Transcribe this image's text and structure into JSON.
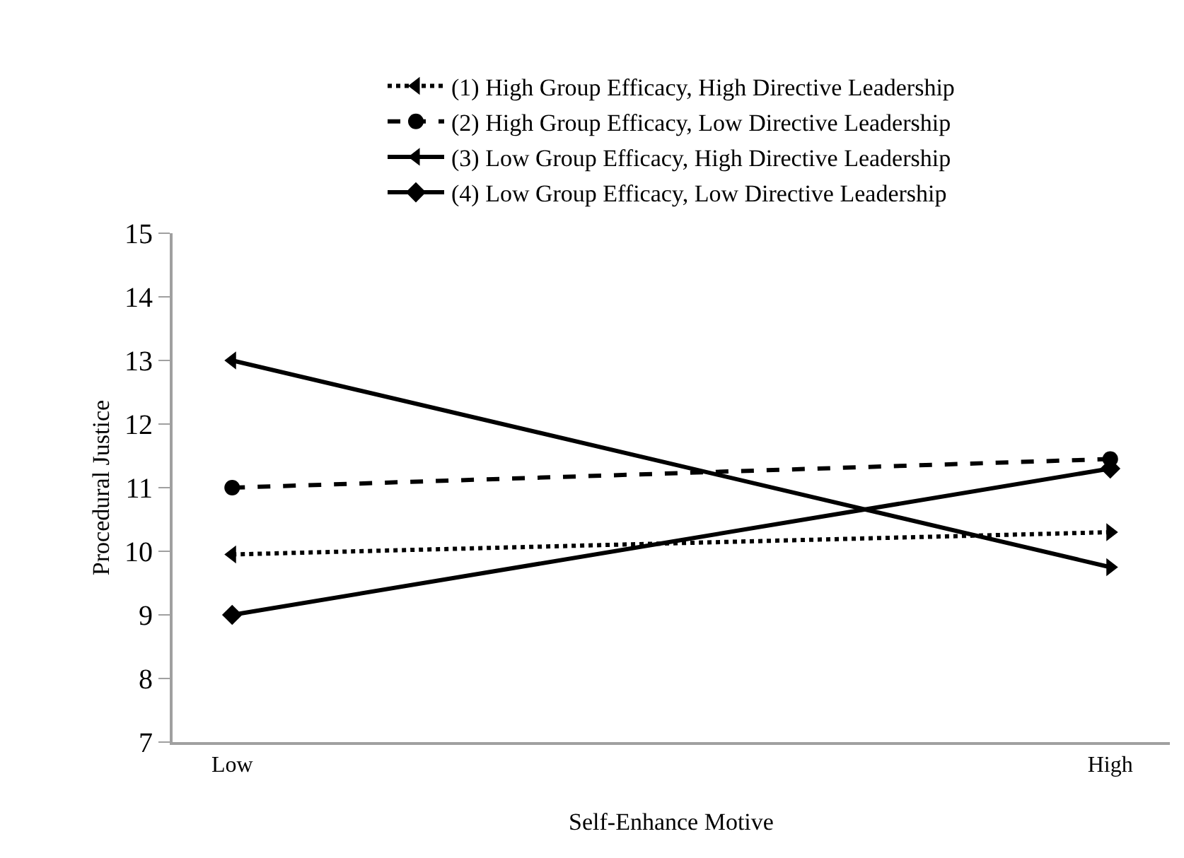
{
  "chart_data": {
    "type": "line",
    "xlabel": "Self-Enhance Motive",
    "ylabel": "Procedural Justice",
    "categories": [
      "Low",
      "High"
    ],
    "series": [
      {
        "name": "(1) High Group Efficacy, High Directive Leadership",
        "color": "#000000",
        "values": [
          9.95,
          10.3
        ],
        "marker": "triangle",
        "line_style": "dotted"
      },
      {
        "name": "(2) High Group Efficacy, Low Directive Leadership",
        "color": "#000000",
        "values": [
          11.0,
          11.45
        ],
        "marker": "circle",
        "line_style": "dashed"
      },
      {
        "name": "(3) Low Group Efficacy, High Directive Leadership",
        "color": "#000000",
        "values": [
          13.0,
          9.75
        ],
        "marker": "triangle",
        "line_style": "solid"
      },
      {
        "name": "(4) Low Group Efficacy, Low Directive Leadership",
        "color": "#000000",
        "values": [
          9.0,
          11.3
        ],
        "marker": "diamond",
        "line_style": "solid"
      }
    ],
    "ylim": [
      7,
      15
    ],
    "yticks": [
      7,
      8,
      9,
      10,
      11,
      12,
      13,
      14,
      15
    ],
    "grid": false,
    "legend": "top"
  }
}
